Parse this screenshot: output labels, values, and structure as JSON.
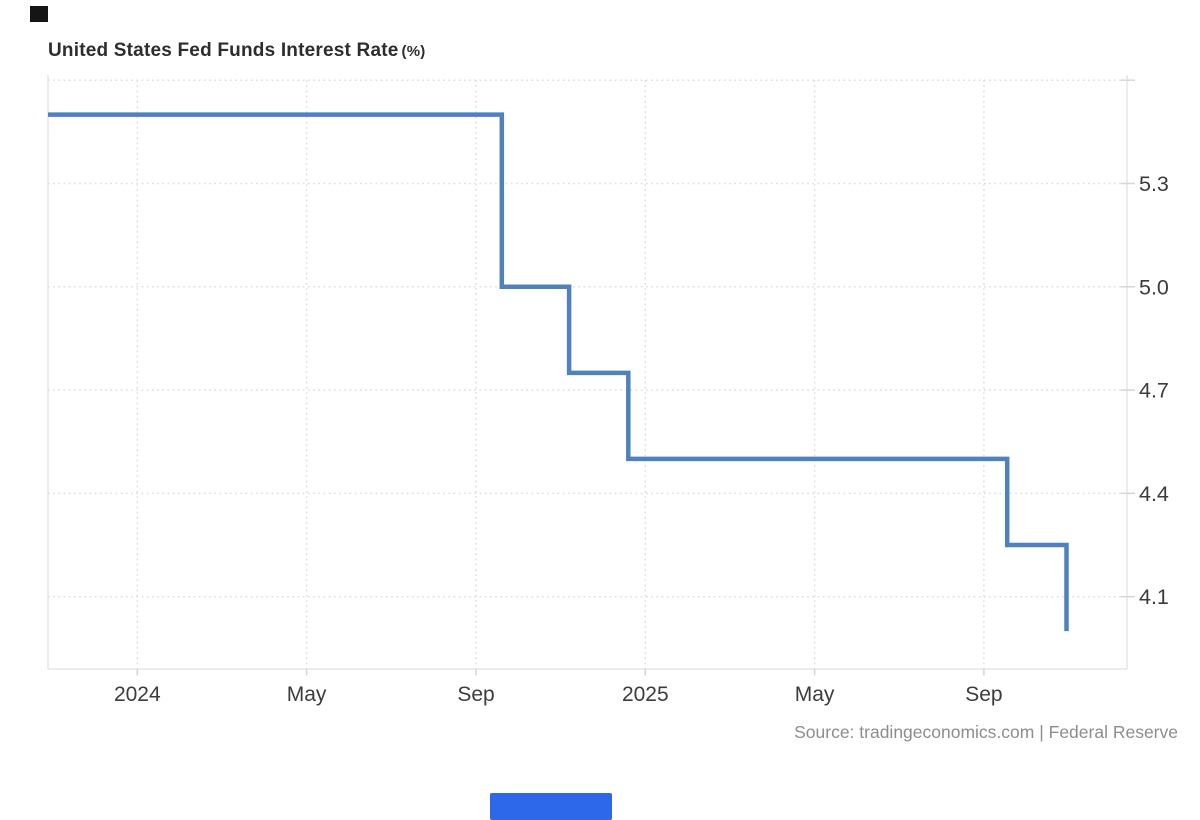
{
  "title": {
    "main": "United States Fed Funds Interest Rate",
    "unit": "(%)"
  },
  "source_text": "Source: tradingeconomics.com | Federal Reserve",
  "colors": {
    "line": "#4f81bd",
    "grid": "#dcdcdc",
    "border": "#e5e5e5",
    "tick": "#d6d6d6",
    "axis_label": "#3c3c3c",
    "title_text": "#2d2d2d",
    "source_text": "#8d8d8d",
    "background": "#ffffff",
    "top_left_marker": "#151515",
    "bottom_bar": "#2e68ea"
  },
  "chart_data": {
    "type": "line",
    "step": "after",
    "title": "United States Fed Funds Interest Rate (%)",
    "legend": "none",
    "grid_style": "dotted",
    "series": [
      {
        "name": "Fed Funds Interest Rate",
        "points": [
          {
            "date": "2023-10",
            "m": -2.11,
            "value": 5.5
          },
          {
            "date": "2024-09-18",
            "m": 8.61,
            "value": 5.0
          },
          {
            "date": "2024-11-07",
            "m": 10.2,
            "value": 4.75
          },
          {
            "date": "2024-12-18",
            "m": 11.6,
            "value": 4.5
          },
          {
            "date": "2025-09-17",
            "m": 20.55,
            "value": 4.25
          },
          {
            "date": "2025-10-29",
            "m": 21.95,
            "value": 4.0
          }
        ]
      }
    ],
    "x_axis": {
      "unit": "months since Jan 2024",
      "range": [
        -2.11,
        23.38
      ],
      "ticks": [
        {
          "m": 0,
          "label": "2024"
        },
        {
          "m": 4,
          "label": "May"
        },
        {
          "m": 8,
          "label": "Sep"
        },
        {
          "m": 12,
          "label": "2025"
        },
        {
          "m": 16,
          "label": "May"
        },
        {
          "m": 20,
          "label": "Sep"
        }
      ]
    },
    "y_axis": {
      "range": [
        3.89,
        5.615
      ],
      "tick_labels": [
        5.3,
        5.0,
        4.7,
        4.4,
        4.1
      ],
      "gridlines": [
        5.6,
        5.3,
        5.0,
        4.7,
        4.4,
        4.1
      ],
      "labels_side": "right"
    }
  }
}
